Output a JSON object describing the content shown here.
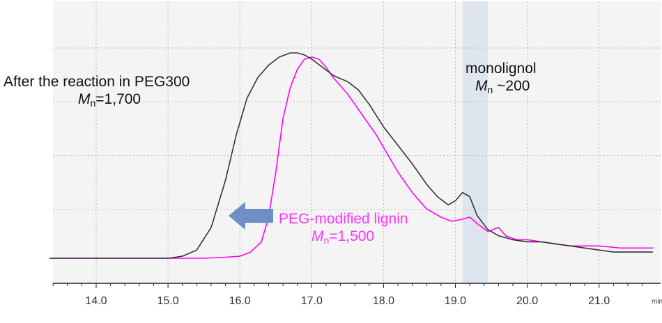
{
  "chart_data": {
    "type": "line",
    "title": "",
    "xlabel": "",
    "x_unit": "min",
    "ylabel": "",
    "xlim": [
      13.35,
      21.75
    ],
    "x_ticks": [
      14.0,
      15.0,
      16.0,
      17.0,
      18.0,
      19.0,
      20.0,
      21.0
    ],
    "x_tick_labels": [
      "14.0",
      "15.0",
      "16.0",
      "17.0",
      "18.0",
      "19.0",
      "20.0",
      "21.0"
    ],
    "grid": true,
    "colors": {
      "after_reaction": "#333333",
      "peg_modified": "#ff00ff",
      "band": "#d8e0ec",
      "arrow": "#6f8fc4",
      "grid": "#b8b8b8",
      "plot_bg": "#f4f4f4"
    },
    "shaded_band": [
      19.1,
      19.45
    ],
    "series": [
      {
        "key": "after_reaction",
        "x": [
          13.35,
          15.0,
          15.2,
          15.4,
          15.6,
          15.8,
          15.95,
          16.1,
          16.25,
          16.4,
          16.55,
          16.7,
          16.8,
          16.9,
          17.0,
          17.15,
          17.3,
          17.5,
          17.65,
          17.8,
          18.0,
          18.2,
          18.4,
          18.6,
          18.75,
          18.9,
          19.0,
          19.1,
          19.2,
          19.3,
          19.45,
          19.6,
          19.8,
          20.0,
          20.2,
          20.4,
          20.6,
          20.8,
          21.0,
          21.2,
          21.5,
          21.75
        ],
        "y": [
          0.0,
          0.0,
          0.01,
          0.04,
          0.15,
          0.38,
          0.6,
          0.78,
          0.88,
          0.94,
          0.98,
          1.0,
          1.0,
          0.99,
          0.97,
          0.93,
          0.89,
          0.86,
          0.82,
          0.75,
          0.64,
          0.55,
          0.46,
          0.36,
          0.3,
          0.26,
          0.28,
          0.32,
          0.3,
          0.21,
          0.14,
          0.11,
          0.09,
          0.08,
          0.08,
          0.07,
          0.06,
          0.05,
          0.04,
          0.03,
          0.03,
          0.03
        ]
      },
      {
        "key": "peg_modified",
        "x": [
          13.35,
          15.0,
          15.5,
          15.8,
          16.0,
          16.15,
          16.3,
          16.4,
          16.5,
          16.6,
          16.7,
          16.8,
          16.9,
          17.0,
          17.1,
          17.2,
          17.3,
          17.5,
          17.7,
          17.9,
          18.0,
          18.2,
          18.4,
          18.6,
          18.8,
          18.95,
          19.1,
          19.2,
          19.3,
          19.45,
          19.6,
          19.7,
          19.85,
          20.0,
          20.2,
          20.4,
          20.6,
          20.8,
          21.0,
          21.3,
          21.75
        ],
        "y": [
          0.0,
          0.0,
          0.0,
          0.005,
          0.01,
          0.03,
          0.08,
          0.2,
          0.42,
          0.68,
          0.83,
          0.92,
          0.97,
          0.98,
          0.97,
          0.93,
          0.88,
          0.8,
          0.7,
          0.6,
          0.54,
          0.42,
          0.32,
          0.24,
          0.2,
          0.18,
          0.19,
          0.2,
          0.17,
          0.13,
          0.15,
          0.11,
          0.09,
          0.09,
          0.08,
          0.07,
          0.06,
          0.06,
          0.06,
          0.05,
          0.05
        ]
      }
    ],
    "annotations": {
      "after": {
        "line1": "After the reaction in PEG300",
        "m": "M",
        "n": "n",
        "value": "=1,700"
      },
      "mono": {
        "line1": "monolignol",
        "m": "M",
        "n": "n",
        "value": " ~200"
      },
      "peg": {
        "line1": "PEG-modified lignin",
        "m": "M",
        "n": "n",
        "value": "=1,500"
      }
    }
  }
}
